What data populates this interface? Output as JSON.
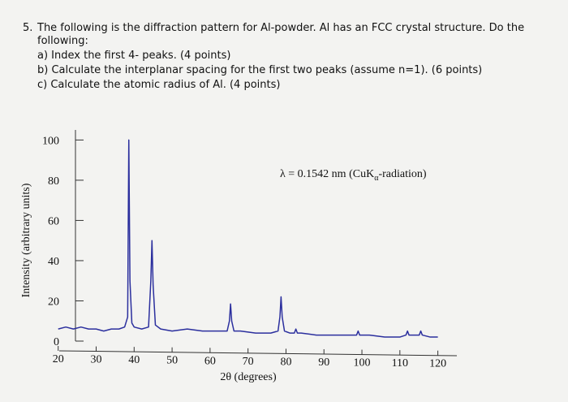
{
  "question": {
    "number": "5.",
    "line1": "The following is the diffraction pattern for Al-powder. Al has an FCC crystal structure. Do the",
    "line2": "following:",
    "items": [
      "a) Index the first 4- peaks. (4 points)",
      "b) Calculate the interplanar spacing for the first two peaks (assume n=1).  (6 points)",
      "c) Calculate the atomic radius of Al.  (4 points)"
    ]
  },
  "chart_data": {
    "type": "line",
    "xlabel": "2θ (degrees)",
    "ylabel": "Intensity (arbitrary units)",
    "annotation": {
      "prefix": "λ = 0.1542 nm (CuK",
      "subscript": "α",
      "suffix": "-radiation)"
    },
    "xlim": [
      16,
      125
    ],
    "ylim": [
      0,
      105
    ],
    "xticks": [
      20,
      30,
      40,
      50,
      60,
      70,
      80,
      90,
      100,
      110,
      120
    ],
    "yticks": [
      0,
      20,
      40,
      60,
      80,
      100
    ],
    "series": [
      {
        "color": "#2b2f9e",
        "x": [
          20,
          22,
          24,
          26,
          28,
          30,
          32,
          34,
          36,
          37.5,
          38.3,
          38.6,
          38.9,
          39.4,
          40,
          42,
          43.8,
          44.4,
          44.7,
          45,
          45.6,
          47,
          50,
          54,
          58,
          62,
          64.5,
          65.1,
          65.4,
          65.7,
          66.3,
          68,
          72,
          76,
          77.9,
          78.4,
          78.7,
          79,
          79.6,
          81,
          82.2,
          82.6,
          83,
          84,
          88,
          92,
          96,
          98.6,
          99,
          99.4,
          102,
          106,
          110,
          111.6,
          112,
          112.4,
          114,
          115.1,
          115.5,
          115.9,
          118,
          120
        ],
        "values": [
          6,
          7,
          6,
          7,
          6,
          6,
          5,
          6,
          6,
          7,
          12,
          100,
          30,
          9,
          7,
          6,
          7,
          30,
          50,
          28,
          8,
          6,
          5,
          6,
          5,
          5,
          5,
          10,
          18.5,
          10,
          5,
          5,
          4,
          4,
          5,
          12,
          22,
          12,
          5,
          4,
          4,
          6,
          4,
          4,
          3,
          3,
          3,
          3,
          5,
          3,
          3,
          2,
          2,
          3,
          5,
          3,
          3,
          3,
          5,
          3,
          2,
          2
        ]
      }
    ]
  }
}
